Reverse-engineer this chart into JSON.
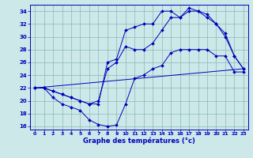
{
  "xlabel": "Graphe des températures (°c)",
  "xlim": [
    -0.5,
    23.5
  ],
  "ylim": [
    15.5,
    35
  ],
  "yticks": [
    16,
    18,
    20,
    22,
    24,
    26,
    28,
    30,
    32,
    34
  ],
  "xticks": [
    0,
    1,
    2,
    3,
    4,
    5,
    6,
    7,
    8,
    9,
    10,
    11,
    12,
    13,
    14,
    15,
    16,
    17,
    18,
    19,
    20,
    21,
    22,
    23
  ],
  "background_color": "#cce8e8",
  "grid_color": "#8ab8b8",
  "line_color": "#0000bb",
  "curves": [
    {
      "x": [
        0,
        1,
        2,
        3,
        4,
        5,
        6,
        7,
        8,
        9,
        10,
        11,
        12,
        13,
        14,
        15,
        16,
        17,
        18,
        19,
        20,
        21,
        22,
        23
      ],
      "y": [
        22,
        22,
        20.5,
        19.5,
        19,
        18.5,
        17,
        16.3,
        16,
        16.2,
        19.5,
        23.5,
        24,
        25,
        25.5,
        27.5,
        28,
        28,
        28,
        28,
        27,
        27,
        24.5,
        24.5
      ],
      "marker": true
    },
    {
      "x": [
        0,
        1,
        2,
        3,
        4,
        5,
        6,
        7,
        8,
        9,
        10,
        11,
        12,
        13,
        14,
        15,
        16,
        17,
        18,
        19,
        20,
        21,
        22,
        23
      ],
      "y": [
        22,
        22,
        21.5,
        21,
        20.5,
        20,
        19.5,
        19.5,
        26,
        26.5,
        31,
        31.5,
        32,
        32,
        34,
        34,
        33,
        34.5,
        34,
        33.5,
        32,
        30,
        27,
        25
      ],
      "marker": true
    },
    {
      "x": [
        0,
        1,
        2,
        3,
        4,
        5,
        6,
        7,
        8,
        9,
        10,
        11,
        12,
        13,
        14,
        15,
        16,
        17,
        18,
        19,
        20,
        21,
        22,
        23
      ],
      "y": [
        22,
        22,
        21.5,
        21,
        20.5,
        20,
        19.5,
        20,
        25,
        26,
        28.5,
        28,
        28,
        29,
        31,
        33,
        33,
        34,
        34,
        33,
        32,
        30.5,
        27,
        25
      ],
      "marker": true
    },
    {
      "x": [
        0,
        23
      ],
      "y": [
        22,
        25
      ],
      "marker": false
    }
  ]
}
